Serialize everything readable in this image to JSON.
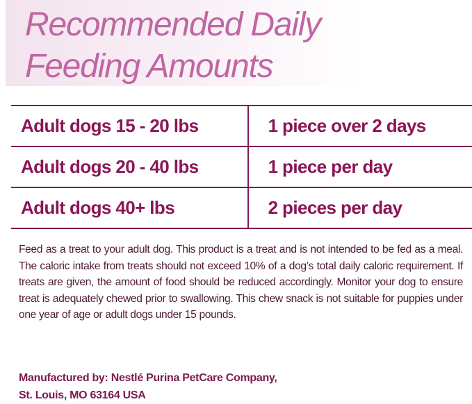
{
  "title": {
    "line1": "Recommended Daily",
    "line2": "Feeding Amounts"
  },
  "colors": {
    "title": "#c066a3",
    "table_text": "#8c1556",
    "rule": "#7d1a4e",
    "body_text": "#4e1a37"
  },
  "feeding_table": {
    "rows": [
      {
        "weight": "Adult dogs 15 - 20 lbs",
        "amount": "1 piece over 2 days"
      },
      {
        "weight": "Adult dogs 20 - 40 lbs",
        "amount": "1 piece per day"
      },
      {
        "weight": "Adult dogs 40+ lbs",
        "amount": "2 pieces per day"
      }
    ]
  },
  "instructions": "Feed as a treat to your adult dog. This product is a treat and is not intended to be fed as a meal. The caloric intake from treats should not exceed 10% of a dog’s total daily caloric requirement. If treats are given, the amount of food should be reduced accordingly. Monitor your dog to ensure treat is adequately chewed prior to swallowing. This chew snack is not suitable for puppies under one year of age or adult dogs under 15 pounds.",
  "manufacturer": {
    "line1": "Manufactured by: Nestlé Purina PetCare Company,",
    "line2": "St. Louis, MO 63164 USA"
  }
}
